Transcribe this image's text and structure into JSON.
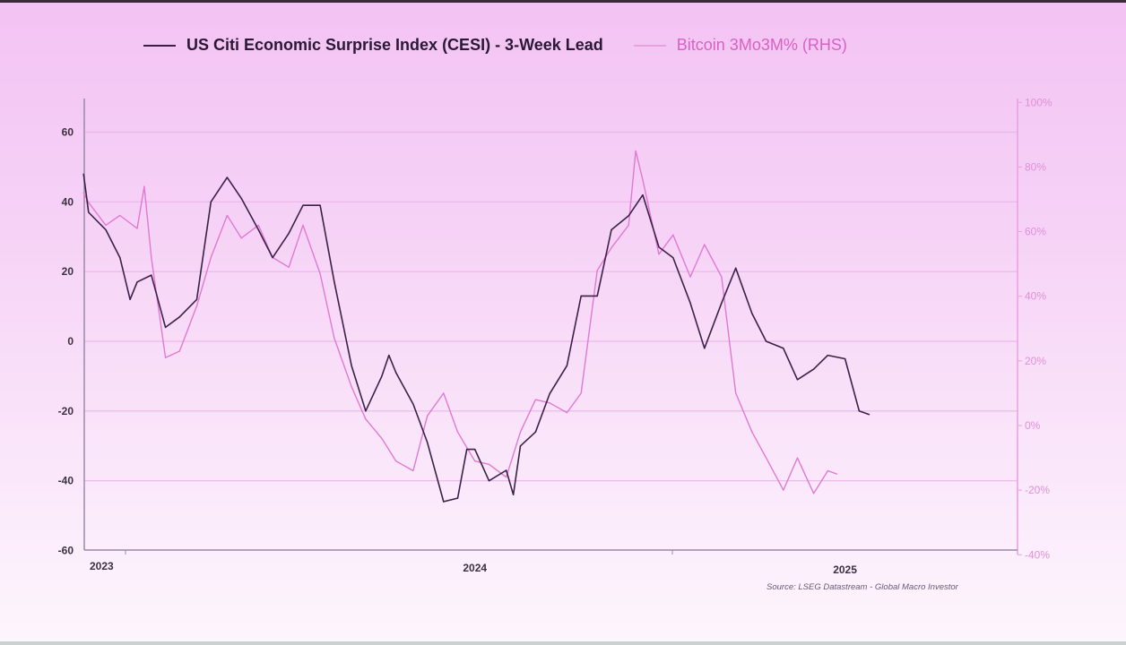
{
  "chart_data": {
    "type": "line",
    "title": "",
    "legend_placement": "top",
    "grid": true,
    "x_tick_labels": [
      {
        "label": "2023",
        "date": "2023-01-01"
      },
      {
        "label": "2024",
        "date": "2024-01-01"
      },
      {
        "label": "2025",
        "date": "2025-01-01"
      }
    ],
    "left_axis": {
      "ylim": [
        -60,
        60
      ],
      "ticks": [
        "60",
        "40",
        "20",
        "0",
        "-20",
        "-40",
        "-60"
      ],
      "tick_values": [
        60,
        40,
        20,
        0,
        -20,
        -40,
        -60
      ]
    },
    "right_axis": {
      "ylim": [
        -40,
        100
      ],
      "ticks": [
        "100%",
        "80%",
        "60%",
        "40%",
        "20%",
        "0%",
        "-20%",
        "-40%"
      ],
      "tick_values": [
        100,
        80,
        60,
        40,
        20,
        0,
        -20,
        -40
      ]
    },
    "series": [
      {
        "name": "US Citi Economic Surprise Index (CESI) - 3-Week Lead",
        "axis": "left",
        "color": "#3b2148",
        "points": [
          [
            "2022-12-10",
            48
          ],
          [
            "2022-12-15",
            37
          ],
          [
            "2023-01-01",
            32
          ],
          [
            "2023-01-15",
            24
          ],
          [
            "2023-01-25",
            12
          ],
          [
            "2023-02-01",
            17
          ],
          [
            "2023-02-15",
            19
          ],
          [
            "2023-03-01",
            4
          ],
          [
            "2023-03-15",
            7
          ],
          [
            "2023-04-01",
            12
          ],
          [
            "2023-04-15",
            40
          ],
          [
            "2023-05-01",
            47
          ],
          [
            "2023-05-15",
            41
          ],
          [
            "2023-06-01",
            32
          ],
          [
            "2023-06-15",
            24
          ],
          [
            "2023-07-01",
            31
          ],
          [
            "2023-07-15",
            39
          ],
          [
            "2023-08-01",
            39
          ],
          [
            "2023-08-15",
            17
          ],
          [
            "2023-09-01",
            -7
          ],
          [
            "2023-09-15",
            -20
          ],
          [
            "2023-10-01",
            -10
          ],
          [
            "2023-10-08",
            -4
          ],
          [
            "2023-10-15",
            -9
          ],
          [
            "2023-11-01",
            -18
          ],
          [
            "2023-11-15",
            -29
          ],
          [
            "2023-12-01",
            -46
          ],
          [
            "2023-12-15",
            -45
          ],
          [
            "2023-12-24",
            -31
          ],
          [
            "2024-01-01",
            -31
          ],
          [
            "2024-01-15",
            -40
          ],
          [
            "2024-02-01",
            -37
          ],
          [
            "2024-02-08",
            -44
          ],
          [
            "2024-02-15",
            -30
          ],
          [
            "2024-03-01",
            -26
          ],
          [
            "2024-03-15",
            -15
          ],
          [
            "2024-04-01",
            -7
          ],
          [
            "2024-04-15",
            13
          ],
          [
            "2024-05-01",
            13
          ],
          [
            "2024-05-15",
            32
          ],
          [
            "2024-06-01",
            36
          ],
          [
            "2024-06-15",
            42
          ],
          [
            "2024-07-01",
            27
          ],
          [
            "2024-07-15",
            24
          ],
          [
            "2024-08-01",
            11
          ],
          [
            "2024-08-15",
            -2
          ],
          [
            "2024-09-01",
            11
          ],
          [
            "2024-09-15",
            21
          ],
          [
            "2024-10-01",
            8
          ],
          [
            "2024-10-15",
            0
          ],
          [
            "2024-11-01",
            -2
          ],
          [
            "2024-11-15",
            -11
          ],
          [
            "2024-12-01",
            -8
          ],
          [
            "2024-12-15",
            -4
          ],
          [
            "2025-01-01",
            -5
          ],
          [
            "2025-01-15",
            -20
          ],
          [
            "2025-01-25",
            -21
          ]
        ]
      },
      {
        "name": "Bitcoin 3Mo3M% (RHS)",
        "axis": "right",
        "color": "#e07ad0",
        "points": [
          [
            "2022-12-10",
            72
          ],
          [
            "2022-12-15",
            69
          ],
          [
            "2023-01-01",
            62
          ],
          [
            "2023-01-15",
            65
          ],
          [
            "2023-02-01",
            61
          ],
          [
            "2023-02-08",
            74
          ],
          [
            "2023-02-15",
            52
          ],
          [
            "2023-03-01",
            21
          ],
          [
            "2023-03-15",
            23
          ],
          [
            "2023-04-01",
            37
          ],
          [
            "2023-04-15",
            52
          ],
          [
            "2023-05-01",
            65
          ],
          [
            "2023-05-15",
            58
          ],
          [
            "2023-06-01",
            62
          ],
          [
            "2023-06-15",
            52
          ],
          [
            "2023-07-01",
            49
          ],
          [
            "2023-07-15",
            62
          ],
          [
            "2023-08-01",
            47
          ],
          [
            "2023-08-15",
            27
          ],
          [
            "2023-09-01",
            12
          ],
          [
            "2023-09-15",
            2
          ],
          [
            "2023-10-01",
            -4
          ],
          [
            "2023-10-15",
            -11
          ],
          [
            "2023-11-01",
            -14
          ],
          [
            "2023-11-15",
            3
          ],
          [
            "2023-12-01",
            10
          ],
          [
            "2023-12-15",
            -2
          ],
          [
            "2024-01-01",
            -11
          ],
          [
            "2024-01-15",
            -12
          ],
          [
            "2024-02-01",
            -16
          ],
          [
            "2024-02-15",
            -2
          ],
          [
            "2024-03-01",
            8
          ],
          [
            "2024-03-15",
            7
          ],
          [
            "2024-04-01",
            4
          ],
          [
            "2024-04-15",
            10
          ],
          [
            "2024-05-01",
            48
          ],
          [
            "2024-05-15",
            55
          ],
          [
            "2024-06-01",
            62
          ],
          [
            "2024-06-08",
            85
          ],
          [
            "2024-06-15",
            76
          ],
          [
            "2024-07-01",
            53
          ],
          [
            "2024-07-15",
            59
          ],
          [
            "2024-08-01",
            46
          ],
          [
            "2024-08-15",
            56
          ],
          [
            "2024-09-01",
            46
          ],
          [
            "2024-09-15",
            10
          ],
          [
            "2024-10-01",
            -2
          ],
          [
            "2024-10-15",
            -10
          ],
          [
            "2024-11-01",
            -20
          ],
          [
            "2024-11-15",
            -10
          ],
          [
            "2024-12-01",
            -21
          ],
          [
            "2024-12-15",
            -14
          ],
          [
            "2024-12-24",
            -15
          ]
        ]
      }
    ],
    "source": "Source: LSEG Datastream - Global Macro Investor"
  }
}
